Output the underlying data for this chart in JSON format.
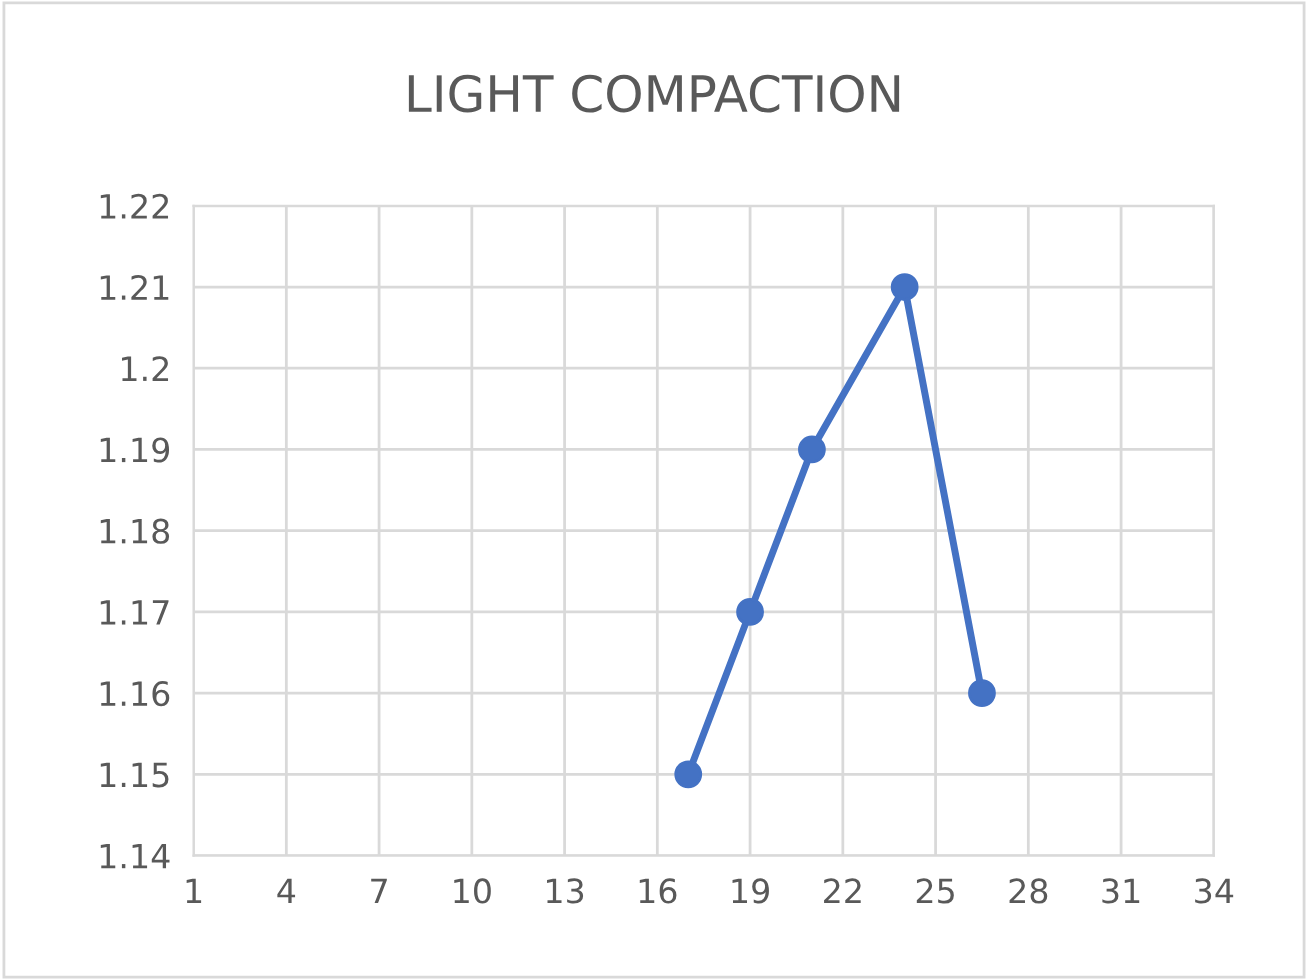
{
  "chart_data": {
    "type": "line",
    "title": "LIGHT COMPACTION",
    "x": [
      17,
      19,
      21,
      24,
      26.5
    ],
    "series": [
      {
        "color": "#4472c4",
        "values": [
          1.15,
          1.17,
          1.19,
          1.21,
          1.16
        ]
      }
    ],
    "xlim": [
      1,
      34
    ],
    "xticks": [
      1,
      4,
      7,
      10,
      13,
      16,
      19,
      22,
      25,
      28,
      31,
      34
    ],
    "ylim": [
      1.14,
      1.22
    ],
    "yticks": [
      1.14,
      1.15,
      1.16,
      1.17,
      1.18,
      1.19,
      1.2,
      1.21,
      1.22
    ],
    "grid": true,
    "marker": "circle",
    "line_style": "solid"
  }
}
